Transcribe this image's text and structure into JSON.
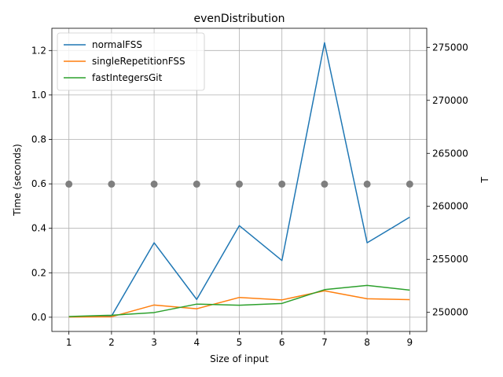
{
  "chart_data": {
    "type": "line",
    "title": "evenDistribution",
    "xlabel": "Size of input",
    "ylabel": "Time (seconds)",
    "ylabel_right": "T",
    "x": [
      1,
      2,
      3,
      4,
      5,
      6,
      7,
      8,
      9
    ],
    "xlim": [
      0.6,
      9.4
    ],
    "ylim": [
      -0.064,
      1.3
    ],
    "yticks": [
      0.0,
      0.2,
      0.4,
      0.6,
      0.8,
      1.0,
      1.2
    ],
    "ytick_labels": [
      "0.0",
      "0.2",
      "0.4",
      "0.6",
      "0.8",
      "1.0",
      "1.2"
    ],
    "ylim_right": [
      248200,
      276800
    ],
    "yticks_right": [
      250000,
      255000,
      260000,
      265000,
      270000,
      275000
    ],
    "ytick_labels_right": [
      "250000",
      "255000",
      "260000",
      "265000",
      "270000",
      "275000"
    ],
    "grid": true,
    "legend_position": "top-left",
    "series": [
      {
        "name": "normalFSS",
        "color": "#1f77b4",
        "values": [
          0.002,
          0.005,
          0.335,
          0.08,
          0.412,
          0.255,
          1.235,
          0.335,
          0.45
        ]
      },
      {
        "name": "singleRepetitionFSS",
        "color": "#ff7f0e",
        "values": [
          0.001,
          0.002,
          0.055,
          0.038,
          0.089,
          0.078,
          0.119,
          0.083,
          0.079
        ]
      },
      {
        "name": "fastIntegersGit",
        "color": "#2ca02c",
        "values": [
          0.003,
          0.009,
          0.021,
          0.059,
          0.054,
          0.062,
          0.124,
          0.143,
          0.122
        ]
      }
    ],
    "scatter": {
      "axis": "right",
      "color": "#7f7f7f",
      "values": [
        262100,
        262100,
        262100,
        262100,
        262100,
        262100,
        262100,
        262100,
        262100
      ]
    }
  }
}
